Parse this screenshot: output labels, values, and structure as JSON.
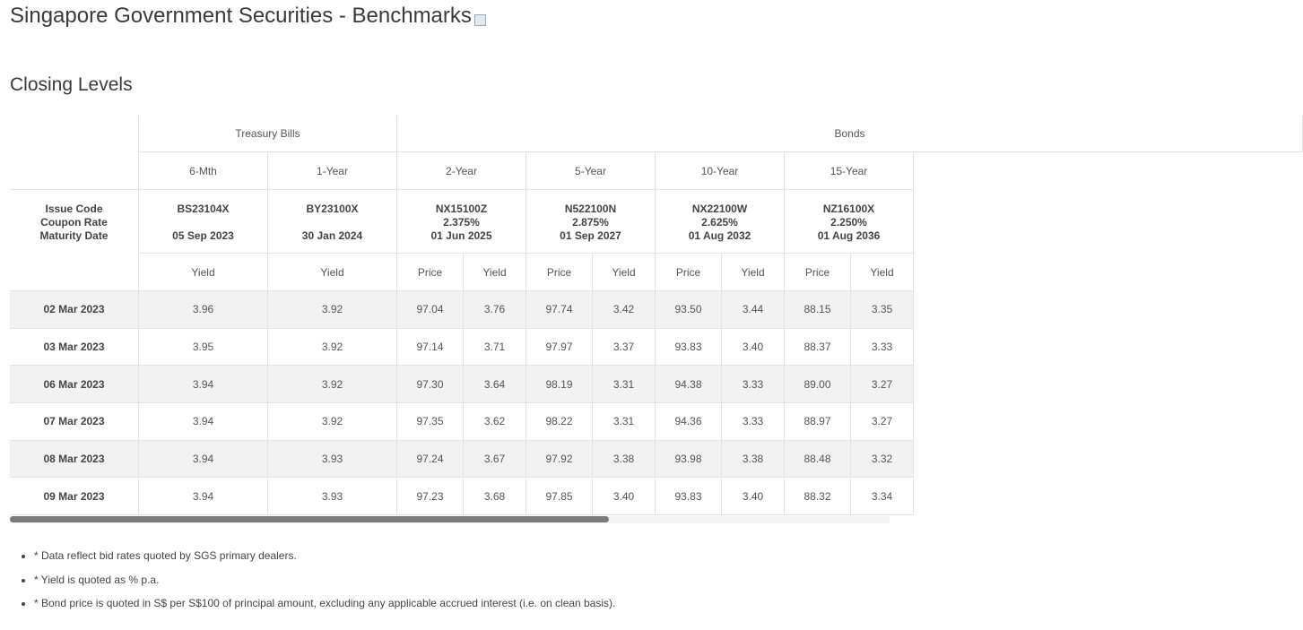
{
  "title": "Singapore Government Securities - Benchmarks",
  "section_title": "Closing Levels",
  "table": {
    "groups": [
      "Treasury Bills",
      "Bonds"
    ],
    "tenors": [
      "6-Mth",
      "1-Year",
      "2-Year",
      "5-Year",
      "10-Year",
      "15-Year"
    ],
    "row_label": [
      "Issue Code",
      "Coupon Rate",
      "Maturity Date"
    ],
    "issues": [
      {
        "code": "BS23104X",
        "maturity": "05 Sep 2023"
      },
      {
        "code": "BY23100X",
        "maturity": "30 Jan 2024"
      },
      {
        "code": "NX15100Z",
        "coupon": "2.375%",
        "maturity": "01 Jun 2025"
      },
      {
        "code": "N522100N",
        "coupon": "2.875%",
        "maturity": "01 Sep 2027"
      },
      {
        "code": "NX22100W",
        "coupon": "2.625%",
        "maturity": "01 Aug 2032"
      },
      {
        "code": "NZ16100X",
        "coupon": "2.250%",
        "maturity": "01 Aug 2036"
      }
    ],
    "measures": [
      "Yield",
      "Yield",
      "Price",
      "Yield",
      "Price",
      "Yield",
      "Price",
      "Yield",
      "Price",
      "Yield"
    ],
    "rows": [
      {
        "date": "02 Mar 2023",
        "values": [
          "3.96",
          "3.92",
          "97.04",
          "3.76",
          "97.74",
          "3.42",
          "93.50",
          "3.44",
          "88.15",
          "3.35"
        ]
      },
      {
        "date": "03 Mar 2023",
        "values": [
          "3.95",
          "3.92",
          "97.14",
          "3.71",
          "97.97",
          "3.37",
          "93.83",
          "3.40",
          "88.37",
          "3.33"
        ]
      },
      {
        "date": "06 Mar 2023",
        "values": [
          "3.94",
          "3.92",
          "97.30",
          "3.64",
          "98.19",
          "3.31",
          "94.38",
          "3.33",
          "89.00",
          "3.27"
        ]
      },
      {
        "date": "07 Mar 2023",
        "values": [
          "3.94",
          "3.92",
          "97.35",
          "3.62",
          "98.22",
          "3.31",
          "94.36",
          "3.33",
          "88.97",
          "3.27"
        ]
      },
      {
        "date": "08 Mar 2023",
        "values": [
          "3.94",
          "3.93",
          "97.24",
          "3.67",
          "97.92",
          "3.38",
          "93.98",
          "3.38",
          "88.48",
          "3.32"
        ]
      },
      {
        "date": "09 Mar 2023",
        "values": [
          "3.94",
          "3.93",
          "97.23",
          "3.68",
          "97.85",
          "3.40",
          "93.83",
          "3.40",
          "88.32",
          "3.34"
        ]
      }
    ]
  },
  "notes": [
    "* Data reflect bid rates quoted by SGS primary dealers.",
    "* Yield is quoted as % p.a.",
    "* Bond price is quoted in S$ per S$100 of principal amount, excluding any applicable accrued interest (i.e. on clean basis)."
  ]
}
